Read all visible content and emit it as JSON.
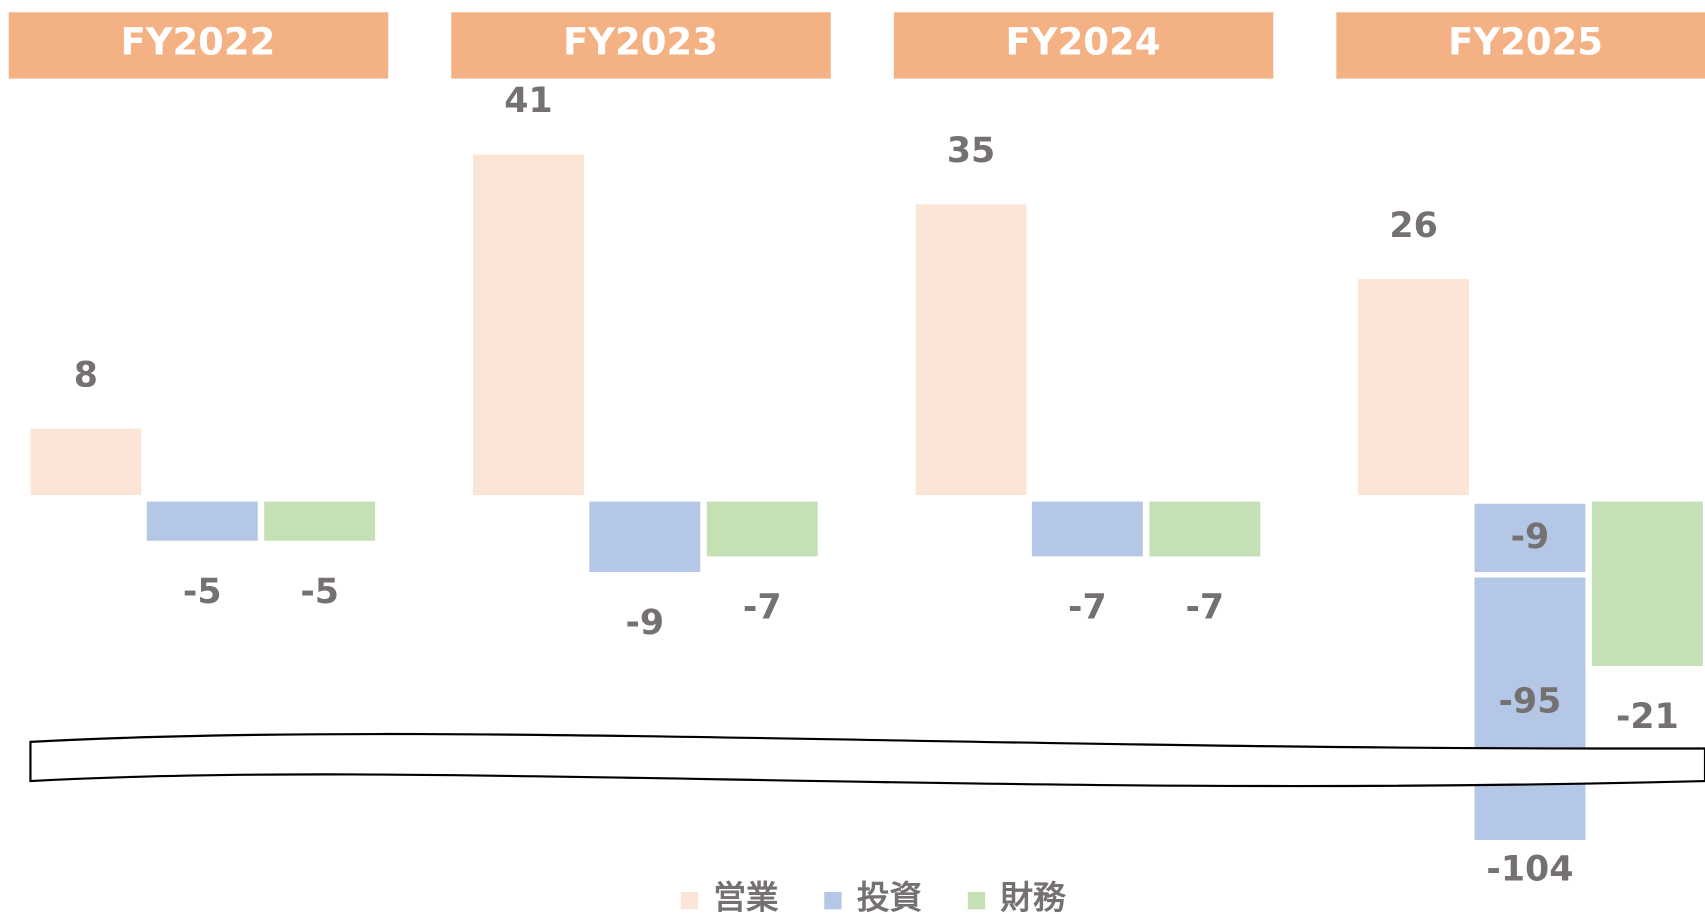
{
  "chart_data": {
    "type": "bar",
    "categories": [
      "FY2022",
      "FY2023",
      "FY2024",
      "FY2025"
    ],
    "series": [
      {
        "name": "営業",
        "color": "#fbe5d6",
        "values": [
          8,
          41,
          35,
          26
        ]
      },
      {
        "name": "投資",
        "color": "#b4c7e7",
        "values": [
          -5,
          -9,
          -7,
          -104
        ],
        "breakdown": [
          null,
          null,
          null,
          [
            -9,
            -95
          ]
        ]
      },
      {
        "name": "財務",
        "color": "#c5e0b4",
        "values": [
          -5,
          -7,
          -7,
          -21
        ]
      }
    ],
    "header_color": "#f4b183",
    "axis_break": true,
    "legend": "bottom"
  }
}
